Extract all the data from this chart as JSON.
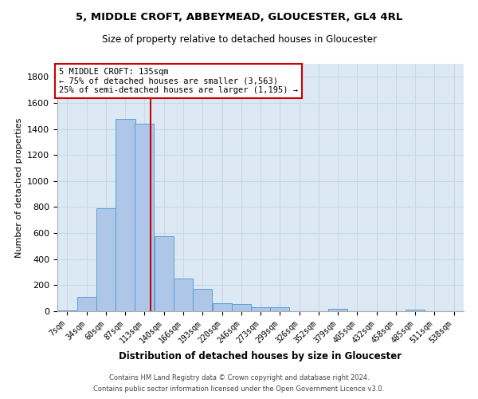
{
  "title_line1": "5, MIDDLE CROFT, ABBEYMEAD, GLOUCESTER, GL4 4RL",
  "title_line2": "Size of property relative to detached houses in Gloucester",
  "xlabel": "Distribution of detached houses by size in Gloucester",
  "ylabel": "Number of detached properties",
  "bar_labels": [
    "7sqm",
    "34sqm",
    "60sqm",
    "87sqm",
    "113sqm",
    "140sqm",
    "166sqm",
    "193sqm",
    "220sqm",
    "246sqm",
    "273sqm",
    "299sqm",
    "326sqm",
    "352sqm",
    "379sqm",
    "405sqm",
    "432sqm",
    "458sqm",
    "485sqm",
    "511sqm",
    "538sqm"
  ],
  "bar_values": [
    5,
    110,
    790,
    1480,
    1440,
    575,
    250,
    170,
    60,
    55,
    30,
    30,
    0,
    0,
    20,
    0,
    0,
    0,
    15,
    0,
    0
  ],
  "bar_color": "#aec6e8",
  "bar_edge_color": "#5a9fd4",
  "property_line_x": 135,
  "property_line_label": "5 MIDDLE CROFT: 135sqm",
  "annotation_line1": "← 75% of detached houses are smaller (3,563)",
  "annotation_line2": "25% of semi-detached houses are larger (1,195) →",
  "vline_color": "#cc0000",
  "grid_color": "#c8d8e8",
  "background_color": "#dce9f5",
  "ylim": [
    0,
    1900
  ],
  "yticks": [
    0,
    200,
    400,
    600,
    800,
    1000,
    1200,
    1400,
    1600,
    1800
  ],
  "footer_line1": "Contains HM Land Registry data © Crown copyright and database right 2024.",
  "footer_line2": "Contains public sector information licensed under the Open Government Licence v3.0.",
  "bin_starts": [
    7,
    34,
    60,
    87,
    113,
    140,
    166,
    193,
    220,
    246,
    273,
    299,
    326,
    352,
    379,
    405,
    432,
    458,
    485,
    511,
    538
  ],
  "bin_width": 27
}
